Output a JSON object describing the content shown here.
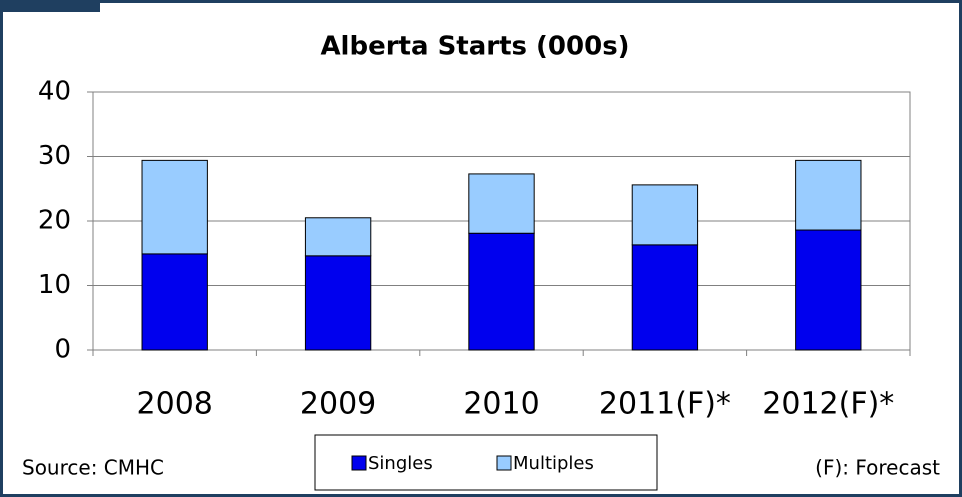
{
  "chart_data": {
    "type": "stacked_bar",
    "title": "Alberta Starts (000s)",
    "categories": [
      "2008",
      "2009",
      "2010",
      "2011(F)*",
      "2012(F)*"
    ],
    "series": [
      {
        "name": "Singles",
        "color": "#0000ee",
        "values": [
          14.9,
          14.6,
          18.1,
          16.3,
          18.6
        ]
      },
      {
        "name": "Multiples",
        "color": "#99ccff",
        "values": [
          14.5,
          5.9,
          9.2,
          9.3,
          10.8
        ]
      }
    ],
    "ylim": [
      0,
      40
    ],
    "yticks": [
      0,
      10,
      20,
      30,
      40
    ],
    "grid": true,
    "source": "Source: CMHC",
    "note": "(F): Forecast"
  }
}
